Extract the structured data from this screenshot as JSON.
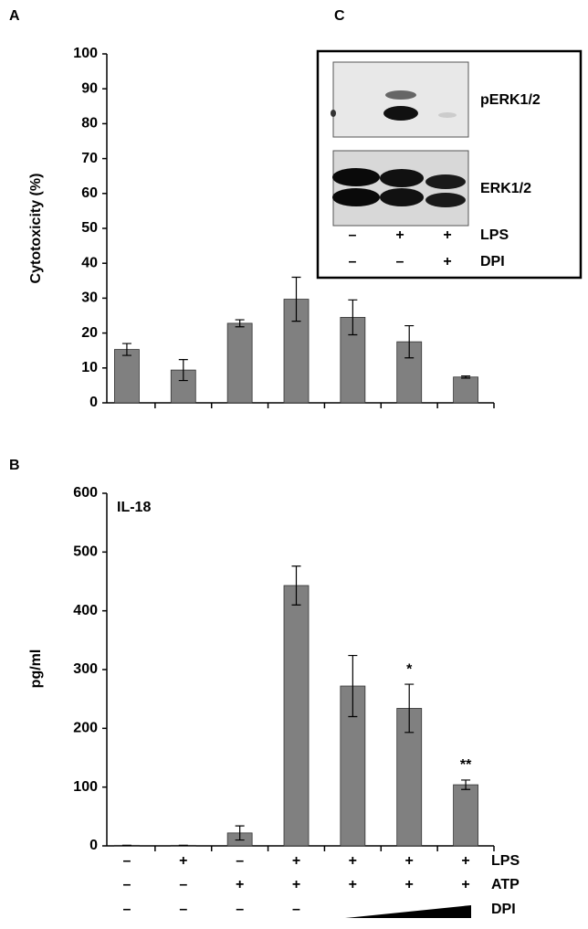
{
  "chart_data": [
    {
      "type": "bar",
      "panel_label": "A",
      "ylabel": "Cytotoxicity (%)",
      "categories": [
        null,
        null,
        null,
        null,
        null,
        null,
        null
      ],
      "values": [
        15.3,
        9.4,
        22.8,
        29.7,
        24.5,
        17.5,
        7.4
      ],
      "errors": [
        1.7,
        3.0,
        1.0,
        6.3,
        5.0,
        4.6,
        0.3
      ],
      "color": "#808080",
      "ylim": [
        0,
        100
      ],
      "yticks": [
        0,
        10,
        20,
        30,
        40,
        50,
        60,
        70,
        80,
        90,
        100
      ]
    },
    {
      "type": "bar",
      "panel_label": "B",
      "ylabel": "pg/ml",
      "annotation": "IL-18",
      "categories": [
        null,
        null,
        null,
        null,
        null,
        null,
        null
      ],
      "values": [
        1,
        1,
        22,
        443,
        272,
        234,
        104
      ],
      "errors": [
        0,
        0,
        12,
        33,
        52,
        41,
        8
      ],
      "value_labels": [
        null,
        null,
        null,
        null,
        null,
        "*",
        "**"
      ],
      "color": "#808080",
      "ylim": [
        0,
        600
      ],
      "yticks": [
        0,
        100,
        200,
        300,
        400,
        500,
        600
      ],
      "treatments": [
        {
          "name": "LPS",
          "signs": [
            "–",
            "+",
            "–",
            "+",
            "+",
            "+",
            "+"
          ]
        },
        {
          "name": "ATP",
          "signs": [
            "–",
            "–",
            "+",
            "+",
            "+",
            "+",
            "+"
          ]
        },
        {
          "name": "DPI",
          "signs": [
            "–",
            "–",
            "–",
            "–",
            null,
            null,
            null
          ]
        }
      ]
    }
  ],
  "blot": {
    "panel_label": "C",
    "bands": [
      "pERK1/2",
      "ERK1/2"
    ],
    "treatments": [
      {
        "name": "LPS",
        "signs": [
          "–",
          "+",
          "+"
        ]
      },
      {
        "name": "DPI",
        "signs": [
          "–",
          "–",
          "+"
        ]
      }
    ]
  }
}
